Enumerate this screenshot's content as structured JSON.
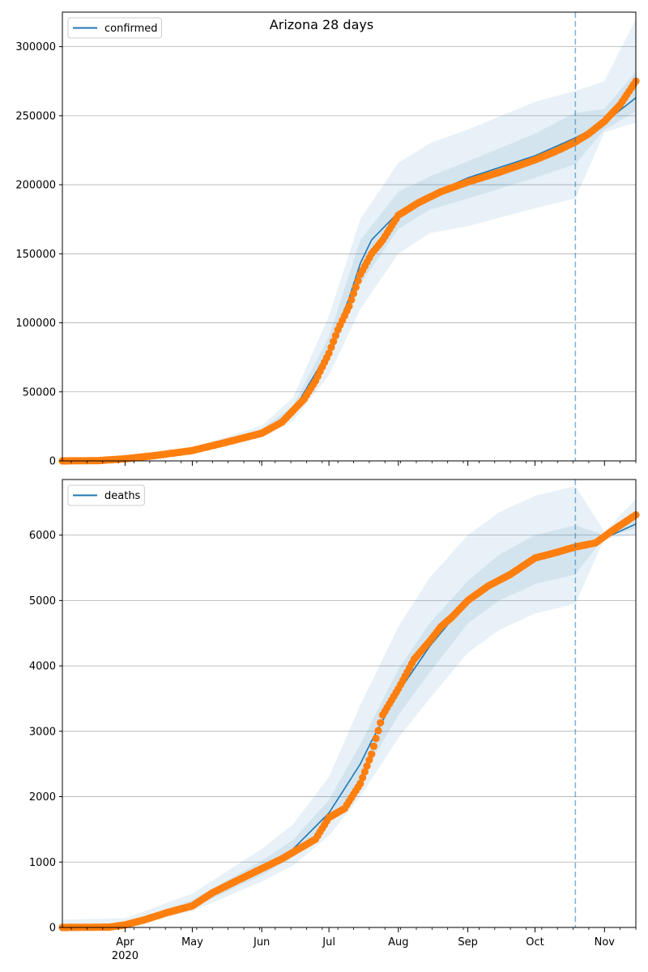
{
  "figure": {
    "title": "Arizona 28 days"
  },
  "colors": {
    "model": "#1f77b4",
    "observed": "#ff7f0e",
    "band": "#1f77b4",
    "grid": "#b0b0b0",
    "vline": "#1f77b4"
  },
  "x_axis": {
    "month_labels": [
      {
        "label": "Apr",
        "date": "2020-04-01"
      },
      {
        "label": "May",
        "date": "2020-05-01"
      },
      {
        "label": "Jun",
        "date": "2020-06-01"
      },
      {
        "label": "Jul",
        "date": "2020-07-01"
      },
      {
        "label": "Aug",
        "date": "2020-08-01"
      },
      {
        "label": "Sep",
        "date": "2020-09-01"
      },
      {
        "label": "Oct",
        "date": "2020-10-01"
      },
      {
        "label": "Nov",
        "date": "2020-11-01"
      }
    ],
    "year_label": "2020",
    "range": [
      "2020-03-04",
      "2020-11-15"
    ]
  },
  "chart_data": [
    {
      "type": "line",
      "title": "Arizona 28 days",
      "legend": {
        "position": "top-left",
        "entries": [
          "confirmed"
        ]
      },
      "ylim": [
        0,
        325000
      ],
      "yticks": [
        0,
        50000,
        100000,
        150000,
        200000,
        250000,
        300000
      ],
      "grid": true,
      "forecast_start": "2020-10-19",
      "series": [
        {
          "name": "confirmed",
          "kind": "model",
          "x": [
            "2020-03-04",
            "2020-04-01",
            "2020-05-01",
            "2020-06-01",
            "2020-06-15",
            "2020-07-01",
            "2020-07-10",
            "2020-07-15",
            "2020-07-20",
            "2020-08-01",
            "2020-08-15",
            "2020-09-01",
            "2020-10-01",
            "2020-10-19",
            "2020-11-01",
            "2020-11-15"
          ],
          "y": [
            0,
            2000,
            8000,
            21000,
            36000,
            80000,
            118000,
            143000,
            160000,
            180000,
            193000,
            205000,
            221000,
            234000,
            245000,
            263000
          ]
        },
        {
          "name": "observed",
          "kind": "observed",
          "x": [
            "2020-03-04",
            "2020-03-20",
            "2020-04-01",
            "2020-04-15",
            "2020-05-01",
            "2020-05-15",
            "2020-06-01",
            "2020-06-10",
            "2020-06-20",
            "2020-06-25",
            "2020-07-01",
            "2020-07-05",
            "2020-07-10",
            "2020-07-15",
            "2020-07-20",
            "2020-07-25",
            "2020-08-01",
            "2020-08-10",
            "2020-08-20",
            "2020-09-01",
            "2020-09-15",
            "2020-10-01",
            "2020-10-10",
            "2020-10-19",
            "2020-10-25",
            "2020-11-01",
            "2020-11-08",
            "2020-11-15"
          ],
          "y": [
            0,
            200,
            1500,
            4000,
            7500,
            13000,
            20000,
            28000,
            45000,
            58000,
            78000,
            95000,
            112000,
            135000,
            150000,
            160000,
            178000,
            187000,
            195000,
            202000,
            209000,
            218000,
            224000,
            231000,
            237000,
            246000,
            258000,
            275000
          ]
        }
      ],
      "band": {
        "x": [
          "2020-03-04",
          "2020-04-01",
          "2020-05-01",
          "2020-06-01",
          "2020-06-15",
          "2020-07-01",
          "2020-07-15",
          "2020-08-01",
          "2020-08-15",
          "2020-09-01",
          "2020-10-01",
          "2020-10-19",
          "2020-11-01",
          "2020-11-15"
        ],
        "outer_low": [
          0,
          1500,
          6500,
          17000,
          29000,
          62000,
          110000,
          150000,
          165000,
          170000,
          183000,
          190000,
          238000,
          245000
        ],
        "inner_low": [
          0,
          1800,
          7300,
          19000,
          33000,
          72000,
          128000,
          168000,
          182000,
          190000,
          205000,
          215000,
          240000,
          253000
        ],
        "inner_high": [
          0,
          2300,
          8800,
          23000,
          40000,
          90000,
          160000,
          195000,
          206000,
          217000,
          237000,
          252000,
          255000,
          282000
        ],
        "outer_high": [
          0,
          2600,
          9700,
          25500,
          46000,
          105000,
          175000,
          216000,
          230000,
          240000,
          260000,
          268000,
          275000,
          320000
        ]
      }
    },
    {
      "type": "line",
      "title": "",
      "legend": {
        "position": "top-left",
        "entries": [
          "deaths"
        ]
      },
      "ylim": [
        0,
        6850
      ],
      "yticks": [
        0,
        1000,
        2000,
        3000,
        4000,
        5000,
        6000
      ],
      "grid": true,
      "forecast_start": "2020-10-19",
      "series": [
        {
          "name": "deaths",
          "kind": "model",
          "x": [
            "2020-03-04",
            "2020-04-01",
            "2020-04-15",
            "2020-05-01",
            "2020-06-01",
            "2020-06-15",
            "2020-07-01",
            "2020-07-15",
            "2020-07-20",
            "2020-08-01",
            "2020-08-15",
            "2020-09-01",
            "2020-09-15",
            "2020-10-01",
            "2020-10-19",
            "2020-11-01",
            "2020-11-15"
          ],
          "y": [
            0,
            30,
            150,
            350,
            900,
            1200,
            1750,
            2500,
            2850,
            3600,
            4300,
            5000,
            5350,
            5620,
            5820,
            5950,
            6170
          ]
        },
        {
          "name": "observed",
          "kind": "observed",
          "x": [
            "2020-03-04",
            "2020-03-25",
            "2020-04-01",
            "2020-04-10",
            "2020-04-20",
            "2020-05-01",
            "2020-05-10",
            "2020-05-20",
            "2020-06-01",
            "2020-06-10",
            "2020-06-20",
            "2020-06-25",
            "2020-07-01",
            "2020-07-08",
            "2020-07-15",
            "2020-07-20",
            "2020-07-25",
            "2020-08-01",
            "2020-08-08",
            "2020-08-15",
            "2020-08-20",
            "2020-08-25",
            "2020-09-01",
            "2020-09-10",
            "2020-09-20",
            "2020-10-01",
            "2020-10-10",
            "2020-10-19",
            "2020-10-28",
            "2020-11-05",
            "2020-11-15"
          ],
          "y": [
            0,
            5,
            40,
            120,
            230,
            330,
            530,
            700,
            900,
            1050,
            1250,
            1350,
            1680,
            1820,
            2200,
            2650,
            3250,
            3650,
            4100,
            4380,
            4600,
            4750,
            5000,
            5220,
            5400,
            5650,
            5730,
            5820,
            5880,
            6080,
            6310
          ]
        }
      ],
      "band": {
        "x": [
          "2020-03-04",
          "2020-04-01",
          "2020-05-01",
          "2020-06-01",
          "2020-06-15",
          "2020-07-01",
          "2020-07-15",
          "2020-08-01",
          "2020-08-15",
          "2020-09-01",
          "2020-09-15",
          "2020-10-01",
          "2020-10-19",
          "2020-11-01",
          "2020-11-15"
        ],
        "outer_low": [
          0,
          15,
          250,
          700,
          950,
          1400,
          2000,
          2900,
          3500,
          4200,
          4550,
          4800,
          4950,
          5950,
          6000
        ],
        "inner_low": [
          0,
          22,
          300,
          800,
          1080,
          1580,
          2250,
          3250,
          3900,
          4650,
          5000,
          5250,
          5400,
          5970,
          6100
        ],
        "inner_high": [
          0,
          45,
          420,
          1020,
          1340,
          1950,
          2800,
          3950,
          4650,
          5300,
          5700,
          6000,
          6150,
          6000,
          6300
        ],
        "outer_high": [
          120,
          140,
          520,
          1200,
          1580,
          2300,
          3400,
          4600,
          5350,
          6000,
          6350,
          6600,
          6750,
          6050,
          6550
        ]
      }
    }
  ]
}
